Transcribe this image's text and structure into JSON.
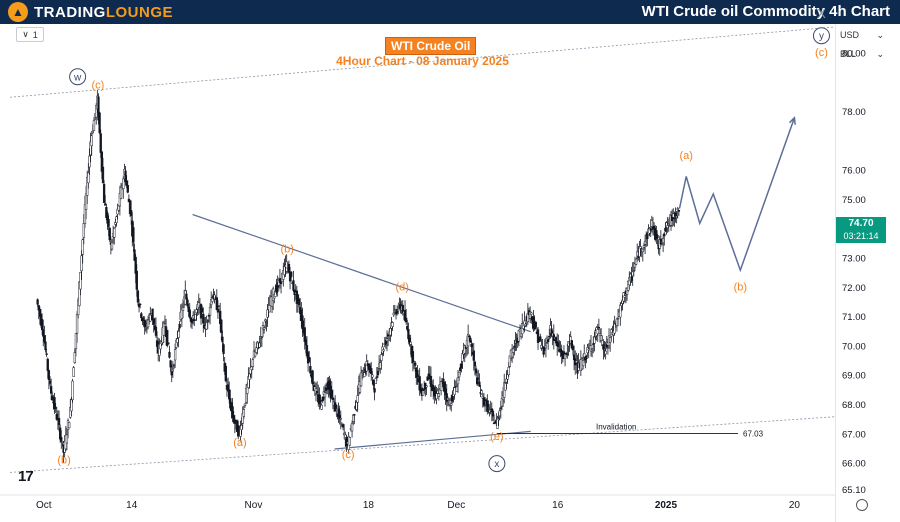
{
  "header": {
    "brand_trading": "TRADING",
    "brand_lounge": "LOUNGE",
    "title": "WTI Crude oil Commodity 4h Chart"
  },
  "toolbar": {
    "interval": "1"
  },
  "chart_header": {
    "title": "WTI Crude Oil",
    "subtitle": "4Hour Chart - 08 January 2025"
  },
  "axis_controls": {
    "currency": "USD",
    "unit": "BLL"
  },
  "price_tag": {
    "price": "74.70",
    "countdown": "03:21:14"
  },
  "colors": {
    "wave_label": "#f58220",
    "wave_line": "#5b6e96",
    "up": "#089981",
    "price_tag_bg": "#089981",
    "header_bg": "#0e2a4e"
  },
  "chart_data": {
    "type": "candlestick",
    "y_ticks": [
      "80.00",
      "78.00",
      "76.00",
      "75.00",
      "74.00",
      "73.00",
      "72.00",
      "71.00",
      "70.00",
      "69.00",
      "68.00",
      "67.00",
      "66.00",
      "65.10"
    ],
    "ylim": [
      65.1,
      81.0
    ],
    "x_ticks": [
      "Oct",
      "14",
      "Nov",
      "18",
      "Dec",
      "16",
      "2025",
      "20"
    ],
    "close_path": [
      {
        "x": "2024-09-30",
        "y": 71.6
      },
      {
        "x": "2024-10-01",
        "y": 70.5
      },
      {
        "x": "2024-10-02",
        "y": 68.6
      },
      {
        "x": "2024-10-03",
        "y": 67.6
      },
      {
        "x": "2024-10-04",
        "y": 66.4
      },
      {
        "x": "2024-10-05",
        "y": 67.8
      },
      {
        "x": "2024-10-06",
        "y": 71.0
      },
      {
        "x": "2024-10-07",
        "y": 74.2
      },
      {
        "x": "2024-10-08",
        "y": 77.0
      },
      {
        "x": "2024-10-09",
        "y": 78.4
      },
      {
        "x": "2024-10-10",
        "y": 75.0
      },
      {
        "x": "2024-10-11",
        "y": 73.4
      },
      {
        "x": "2024-10-12",
        "y": 74.6
      },
      {
        "x": "2024-10-13",
        "y": 76.0
      },
      {
        "x": "2024-10-14",
        "y": 74.4
      },
      {
        "x": "2024-10-15",
        "y": 71.6
      },
      {
        "x": "2024-10-16",
        "y": 70.6
      },
      {
        "x": "2024-10-17",
        "y": 71.2
      },
      {
        "x": "2024-10-18",
        "y": 69.8
      },
      {
        "x": "2024-10-19",
        "y": 70.8
      },
      {
        "x": "2024-10-20",
        "y": 69.0
      },
      {
        "x": "2024-10-21",
        "y": 70.6
      },
      {
        "x": "2024-10-22",
        "y": 71.8
      },
      {
        "x": "2024-10-23",
        "y": 70.8
      },
      {
        "x": "2024-10-24",
        "y": 71.4
      },
      {
        "x": "2024-10-25",
        "y": 70.6
      },
      {
        "x": "2024-10-26",
        "y": 71.8
      },
      {
        "x": "2024-10-27",
        "y": 71.2
      },
      {
        "x": "2024-10-28",
        "y": 68.8
      },
      {
        "x": "2024-10-29",
        "y": 67.6
      },
      {
        "x": "2024-10-30",
        "y": 67.0
      },
      {
        "x": "2024-10-31",
        "y": 68.4
      },
      {
        "x": "2024-11-01",
        "y": 69.6
      },
      {
        "x": "2024-11-02",
        "y": 70.2
      },
      {
        "x": "2024-11-03",
        "y": 71.0
      },
      {
        "x": "2024-11-04",
        "y": 71.8
      },
      {
        "x": "2024-11-05",
        "y": 72.2
      },
      {
        "x": "2024-11-06",
        "y": 72.8
      },
      {
        "x": "2024-11-07",
        "y": 72.0
      },
      {
        "x": "2024-11-08",
        "y": 71.2
      },
      {
        "x": "2024-11-09",
        "y": 69.8
      },
      {
        "x": "2024-11-10",
        "y": 68.6
      },
      {
        "x": "2024-11-11",
        "y": 68.0
      },
      {
        "x": "2024-11-12",
        "y": 68.8
      },
      {
        "x": "2024-11-13",
        "y": 68.0
      },
      {
        "x": "2024-11-14",
        "y": 67.4
      },
      {
        "x": "2024-11-15",
        "y": 66.6
      },
      {
        "x": "2024-11-16",
        "y": 67.8
      },
      {
        "x": "2024-11-17",
        "y": 69.0
      },
      {
        "x": "2024-11-18",
        "y": 69.4
      },
      {
        "x": "2024-11-19",
        "y": 68.6
      },
      {
        "x": "2024-11-20",
        "y": 69.8
      },
      {
        "x": "2024-11-21",
        "y": 70.4
      },
      {
        "x": "2024-11-22",
        "y": 71.2
      },
      {
        "x": "2024-11-23",
        "y": 71.4
      },
      {
        "x": "2024-11-24",
        "y": 70.4
      },
      {
        "x": "2024-11-25",
        "y": 69.2
      },
      {
        "x": "2024-11-26",
        "y": 68.4
      },
      {
        "x": "2024-11-27",
        "y": 69.0
      },
      {
        "x": "2024-11-28",
        "y": 68.2
      },
      {
        "x": "2024-11-29",
        "y": 68.8
      },
      {
        "x": "2024-11-30",
        "y": 68.0
      },
      {
        "x": "2024-12-01",
        "y": 68.6
      },
      {
        "x": "2024-12-02",
        "y": 69.6
      },
      {
        "x": "2024-12-03",
        "y": 70.4
      },
      {
        "x": "2024-12-04",
        "y": 69.0
      },
      {
        "x": "2024-12-05",
        "y": 68.2
      },
      {
        "x": "2024-12-06",
        "y": 67.8
      },
      {
        "x": "2024-12-07",
        "y": 67.3
      },
      {
        "x": "2024-12-08",
        "y": 68.4
      },
      {
        "x": "2024-12-09",
        "y": 69.6
      },
      {
        "x": "2024-12-10",
        "y": 70.2
      },
      {
        "x": "2024-12-11",
        "y": 70.8
      },
      {
        "x": "2024-12-12",
        "y": 71.2
      },
      {
        "x": "2024-12-13",
        "y": 70.4
      },
      {
        "x": "2024-12-14",
        "y": 69.8
      },
      {
        "x": "2024-12-15",
        "y": 70.6
      },
      {
        "x": "2024-12-16",
        "y": 70.0
      },
      {
        "x": "2024-12-17",
        "y": 69.6
      },
      {
        "x": "2024-12-18",
        "y": 70.2
      },
      {
        "x": "2024-12-19",
        "y": 69.2
      },
      {
        "x": "2024-12-20",
        "y": 69.6
      },
      {
        "x": "2024-12-21",
        "y": 70.0
      },
      {
        "x": "2024-12-22",
        "y": 70.6
      },
      {
        "x": "2024-12-23",
        "y": 69.8
      },
      {
        "x": "2024-12-24",
        "y": 70.4
      },
      {
        "x": "2024-12-25",
        "y": 71.0
      },
      {
        "x": "2024-12-26",
        "y": 71.8
      },
      {
        "x": "2024-12-27",
        "y": 72.4
      },
      {
        "x": "2024-12-28",
        "y": 73.2
      },
      {
        "x": "2024-12-29",
        "y": 73.6
      },
      {
        "x": "2024-12-30",
        "y": 74.2
      },
      {
        "x": "2024-12-31",
        "y": 73.4
      },
      {
        "x": "2025-01-01",
        "y": 74.0
      },
      {
        "x": "2025-01-02",
        "y": 74.4
      },
      {
        "x": "2025-01-03",
        "y": 74.7
      }
    ],
    "projection": [
      {
        "x": "2025-01-03",
        "y": 74.7
      },
      {
        "x": "2025-01-04",
        "y": 75.8
      },
      {
        "x": "2025-01-06",
        "y": 74.2
      },
      {
        "x": "2025-01-08",
        "y": 75.2
      },
      {
        "x": "2025-01-12",
        "y": 72.6
      },
      {
        "x": "2025-01-20",
        "y": 77.8
      }
    ],
    "trendlines": [
      {
        "from": {
          "x": "2024-09-26",
          "y": 78.5
        },
        "to": {
          "x": "2025-01-26",
          "y": 80.9
        }
      },
      {
        "from": {
          "x": "2024-09-26",
          "y": 65.7
        },
        "to": {
          "x": "2025-01-26",
          "y": 67.6
        }
      },
      {
        "from": {
          "x": "2024-10-23",
          "y": 74.5
        },
        "to": {
          "x": "2024-12-12",
          "y": 70.5
        }
      },
      {
        "from": {
          "x": "2024-11-13",
          "y": 66.5
        },
        "to": {
          "x": "2024-12-12",
          "y": 67.1
        }
      }
    ],
    "invalidation": {
      "label": "Invalidation",
      "value_label": "67.03",
      "y": 67.03
    },
    "wave_labels": [
      {
        "text": "(b)",
        "x": "2024-10-04",
        "y": 66.0
      },
      {
        "text": "(c)",
        "x": "2024-10-09",
        "y": 78.8
      },
      {
        "text": "(a)",
        "x": "2024-10-30",
        "y": 66.6
      },
      {
        "text": "(b)",
        "x": "2024-11-06",
        "y": 73.2
      },
      {
        "text": "(c)",
        "x": "2024-11-15",
        "y": 66.2
      },
      {
        "text": "(d)",
        "x": "2024-11-23",
        "y": 71.9
      },
      {
        "text": "(e)",
        "x": "2024-12-07",
        "y": 66.8
      },
      {
        "text": "(a)",
        "x": "2025-01-04",
        "y": 76.4
      },
      {
        "text": "(b)",
        "x": "2025-01-12",
        "y": 71.9
      },
      {
        "text": "(c)",
        "x": "2025-01-24",
        "y": 79.9
      }
    ],
    "wave_circles": [
      {
        "text": "w",
        "x": "2024-10-06",
        "y": 79.2
      },
      {
        "text": "x",
        "x": "2024-12-07",
        "y": 66.0
      },
      {
        "text": "y",
        "x": "2025-01-24",
        "y": 80.6
      }
    ],
    "annotations": [
      {
        "text": "X",
        "x": "2025-01-24",
        "y": 81.2
      }
    ]
  }
}
